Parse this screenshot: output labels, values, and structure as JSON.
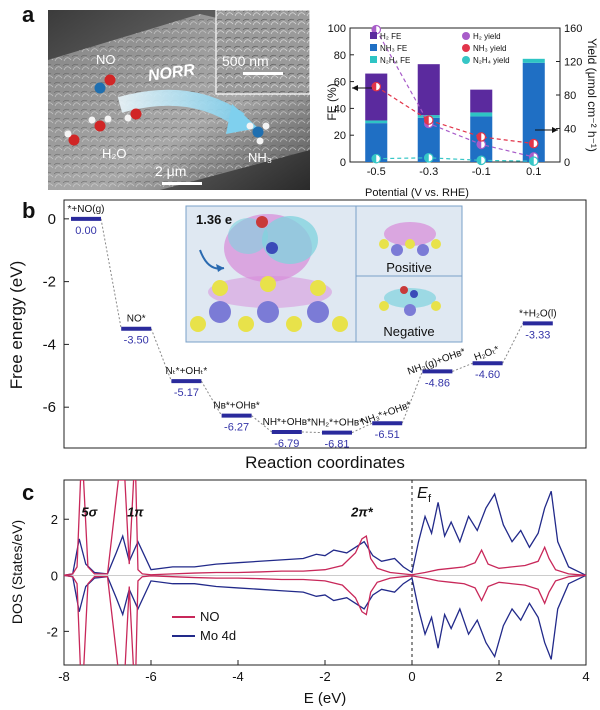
{
  "panels": {
    "a": "a",
    "b": "b",
    "c": "c"
  },
  "micrograph": {
    "norr_label": "NORR",
    "scale_main": "2 μm",
    "scale_inset": "500 nm",
    "mol_no": "NO",
    "mol_h2o": "H₂O",
    "mol_nh3": "NH₃"
  },
  "colors": {
    "h2": "#5b2a9e",
    "nh3": "#1f6fc4",
    "n2h4": "#2ec4c4",
    "h2_yield": "#a85cc9",
    "nh3_yield": "#e2354a",
    "n2h4_yield": "#36c6c6",
    "level": "#2a2a9c",
    "no_dos": "#c8285a",
    "mo_dos": "#222a8a"
  },
  "chart_data": [
    {
      "type": "bar",
      "id": "fe-yield",
      "title": "",
      "categories": [
        "-0.5",
        "-0.3",
        "-0.1",
        "0.1"
      ],
      "xlabel": "Potential (V vs. RHE)",
      "ylabel": "FE (%)",
      "ylim": [
        0,
        100
      ],
      "yticks": [
        0,
        20,
        40,
        60,
        80,
        100
      ],
      "y2label": "Yield (μmol cm⁻² h⁻¹)",
      "y2lim": [
        0,
        160
      ],
      "y2ticks": [
        0,
        40,
        80,
        120,
        160
      ],
      "stacked": true,
      "series": [
        {
          "name": "NH₃ FE",
          "key": "nh3",
          "values": [
            29,
            33,
            34,
            74
          ]
        },
        {
          "name": "N₂H₄ FE",
          "key": "n2h4",
          "values": [
            2,
            2,
            3,
            3
          ]
        },
        {
          "name": "H₂ FE",
          "key": "h2",
          "values": [
            35,
            38,
            17,
            0
          ]
        }
      ],
      "yield_series": [
        {
          "name": "H₂ yield",
          "key": "h2_yield",
          "values": [
            158,
            46,
            21,
            6
          ]
        },
        {
          "name": "NH₃ yield",
          "key": "nh3_yield",
          "values": [
            90,
            50,
            30,
            22
          ]
        },
        {
          "name": "N₂H₄ yield",
          "key": "n2h4_yield",
          "values": [
            4,
            5,
            2,
            1
          ]
        }
      ],
      "legend": [
        "H₂ FE",
        "H₂ yield",
        "NH₃ FE",
        "NH₃ yield",
        "N₂H₄ FE",
        "N₂H₄ yield"
      ]
    },
    {
      "type": "line",
      "id": "energy-profile",
      "title": "",
      "xlabel": "Reaction coordinates",
      "ylabel": "Free energy (eV)",
      "ylim": [
        -7.3,
        0.6
      ],
      "yticks": [
        0,
        -2,
        -4,
        -6
      ],
      "levels": [
        {
          "label": "*+NO(g)",
          "value": -0.0,
          "value_text": "0.00"
        },
        {
          "label": "NO*",
          "value": -3.5,
          "value_text": "-3.50"
        },
        {
          "label": "Nₜ*+OHₜ*",
          "value": -5.17,
          "value_text": "-5.17"
        },
        {
          "label": "Nʙ*+OHʙ*",
          "value": -6.27,
          "value_text": "-6.27"
        },
        {
          "label": "NH*+OHʙ*",
          "value": -6.79,
          "value_text": "-6.79"
        },
        {
          "label": "NH₂*+OHʙ*",
          "value": -6.81,
          "value_text": "-6.81"
        },
        {
          "label": "NH₃*+OHʙ*",
          "value": -6.51,
          "value_text": "-6.51"
        },
        {
          "label": "NH₃(g)+OHʙ*",
          "value": -4.86,
          "value_text": "-4.86"
        },
        {
          "label": "H₂Oₜ*",
          "value": -4.6,
          "value_text": "-4.60"
        },
        {
          "label": "*+H₂O(l)",
          "value": -3.33,
          "value_text": "-3.33"
        }
      ],
      "inset": {
        "charge": "1.36 e",
        "positive": "Positive",
        "negative": "Negative"
      }
    },
    {
      "type": "line",
      "id": "dos",
      "title": "",
      "xlabel": "E (eV)",
      "ylabel": "DOS (States/eV)",
      "xlim": [
        -8,
        4
      ],
      "ylim": [
        -3.2,
        3.4
      ],
      "xticks": [
        -8,
        -6,
        -4,
        -2,
        0,
        2,
        4
      ],
      "yticks": [
        2,
        0,
        -2
      ],
      "fermi": 0,
      "fermi_label": "E",
      "fermi_sub": "f",
      "peak_labels": [
        {
          "text": "5σ",
          "x": -7.6,
          "y": 2.1
        },
        {
          "text": "1π",
          "x": -6.55,
          "y": 2.1
        },
        {
          "text": "2π*",
          "x": -1.4,
          "y": 2.1
        }
      ],
      "legend": [
        "NO",
        "Mo 4d"
      ],
      "series": [
        {
          "name": "NO",
          "key": "no_dos",
          "x": [
            -8,
            -7.8,
            -7.7,
            -7.62,
            -7.55,
            -7.45,
            -7.3,
            -7.0,
            -6.75,
            -6.6,
            -6.5,
            -6.4,
            -6.35,
            -6.3,
            -6.2,
            -6.0,
            -5.5,
            -5.0,
            -4.5,
            -4.0,
            -3.5,
            -3.0,
            -2.5,
            -2.0,
            -1.6,
            -1.3,
            -1.15,
            -1.05,
            -0.95,
            -0.8,
            -0.5,
            -0.2,
            0,
            0.3,
            0.6,
            0.9,
            1.2,
            1.45,
            1.6,
            1.75,
            2.0,
            2.3,
            2.6,
            2.9,
            3.05,
            3.15,
            3.3,
            3.6,
            4
          ],
          "y": [
            0,
            0.05,
            0.3,
            3.4,
            3.4,
            0.3,
            0.05,
            0.05,
            3.4,
            3.4,
            0.4,
            3.4,
            3.4,
            0.2,
            0.05,
            0.02,
            0.05,
            0.08,
            0.1,
            0.1,
            0.12,
            0.15,
            0.15,
            0.2,
            0.35,
            0.8,
            1.3,
            1.4,
            0.6,
            0.25,
            0.1,
            0.05,
            0.02,
            0.1,
            0.2,
            0.25,
            0.3,
            0.45,
            0.9,
            0.4,
            0.25,
            0.3,
            0.35,
            0.5,
            1.0,
            0.6,
            0.2,
            0.05,
            0
          ]
        },
        {
          "name": "Mo 4d",
          "key": "mo_dos",
          "x": [
            -8,
            -7.8,
            -7.65,
            -7.5,
            -7.3,
            -7.0,
            -6.8,
            -6.65,
            -6.5,
            -6.3,
            -6.0,
            -5.5,
            -5.0,
            -4.5,
            -4.0,
            -3.5,
            -3.0,
            -2.5,
            -2.2,
            -2.0,
            -1.8,
            -1.5,
            -1.3,
            -1.1,
            -0.9,
            -0.7,
            -0.4,
            -0.2,
            0,
            0.15,
            0.3,
            0.45,
            0.6,
            0.75,
            0.9,
            1.1,
            1.3,
            1.5,
            1.7,
            1.9,
            2.1,
            2.3,
            2.5,
            2.7,
            2.9,
            3.05,
            3.2,
            3.35,
            3.6,
            4
          ],
          "y": [
            0,
            0.05,
            1.3,
            0.4,
            0.1,
            0.05,
            0.8,
            1.4,
            0.5,
            1.2,
            0.2,
            0.3,
            0.3,
            0.4,
            0.45,
            0.5,
            0.55,
            0.6,
            0.75,
            0.7,
            0.9,
            0.8,
            1.0,
            1.2,
            0.7,
            0.5,
            0.6,
            0.3,
            0.1,
            1.2,
            2.1,
            1.5,
            2.6,
            1.4,
            1.9,
            1.2,
            2.1,
            1.6,
            2.4,
            2.9,
            1.8,
            1.2,
            1.6,
            1.0,
            1.5,
            2.4,
            3.0,
            1.2,
            0.3,
            0
          ]
        }
      ]
    }
  ]
}
